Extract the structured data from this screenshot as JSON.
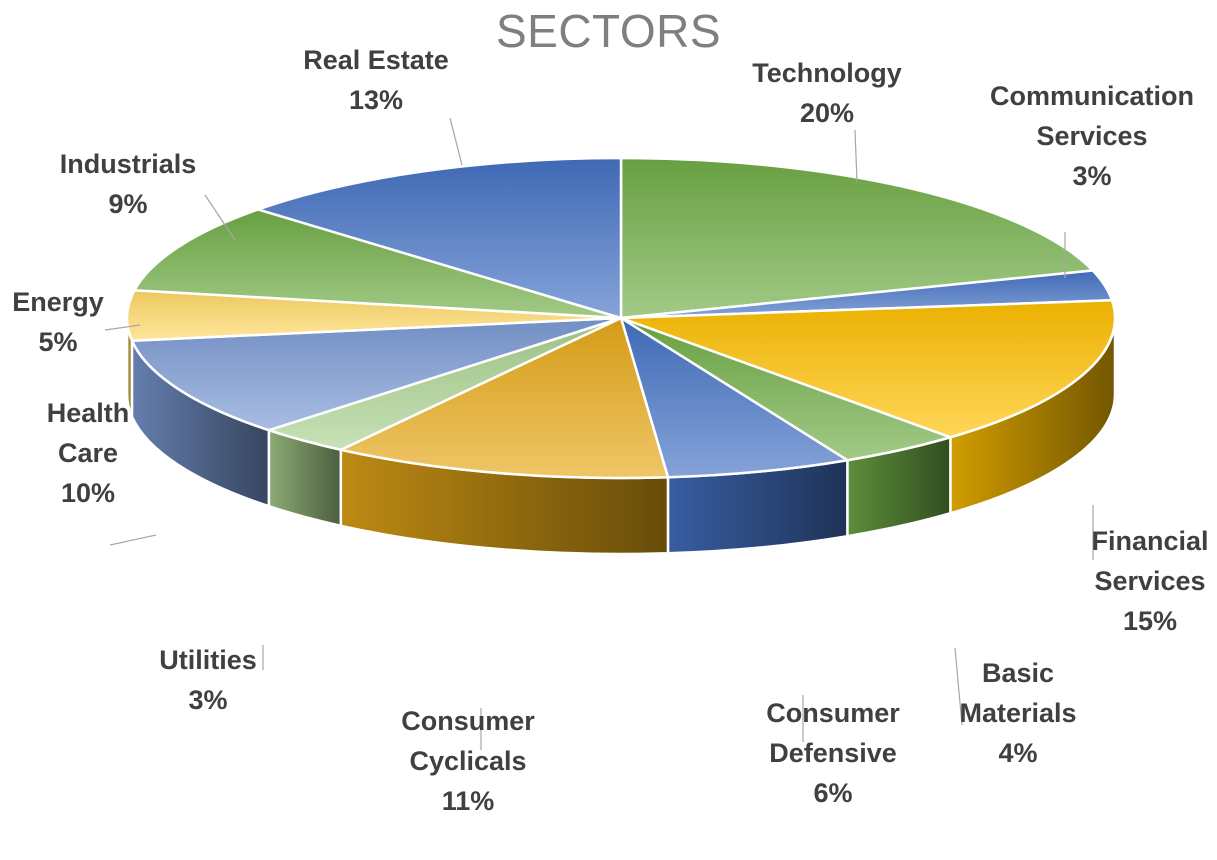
{
  "chart_data": {
    "type": "pie",
    "title": "SECTORS",
    "labels_show_percent": true,
    "slices": [
      {
        "name": "Technology",
        "label_lines": [
          "Technology"
        ],
        "percent_label": "20%",
        "value": 20,
        "color": "#70ad47"
      },
      {
        "name": "Communication Services",
        "label_lines": [
          "Communication",
          "Services"
        ],
        "percent_label": "3%",
        "value": 3,
        "color": "#4472c4"
      },
      {
        "name": "Financial Services",
        "label_lines": [
          "Financial",
          "Services"
        ],
        "percent_label": "15%",
        "value": 15,
        "color": "#ffc000"
      },
      {
        "name": "Basic Materials",
        "label_lines": [
          "Basic",
          "Materials"
        ],
        "percent_label": "4%",
        "value": 4,
        "color": "#70ad47"
      },
      {
        "name": "Consumer Defensive",
        "label_lines": [
          "Consumer",
          "Defensive"
        ],
        "percent_label": "6%",
        "value": 6,
        "color": "#4472c4"
      },
      {
        "name": "Consumer Cyclicals",
        "label_lines": [
          "Consumer",
          "Cyclicals"
        ],
        "percent_label": "11%",
        "value": 11,
        "color": "#e6a817"
      },
      {
        "name": "Utilities",
        "label_lines": [
          "Utilities"
        ],
        "percent_label": "3%",
        "value": 3,
        "color": "#a9d18e"
      },
      {
        "name": "Health Care",
        "label_lines": [
          "Health",
          "Care"
        ],
        "percent_label": "10%",
        "value": 10,
        "color": "#7b9ad4"
      },
      {
        "name": "Energy",
        "label_lines": [
          "Energy"
        ],
        "percent_label": "5%",
        "value": 5,
        "color": "#ffd966"
      },
      {
        "name": "Industrials",
        "label_lines": [
          "Industrials"
        ],
        "percent_label": "9%",
        "value": 9,
        "color": "#70ad47"
      },
      {
        "name": "Real Estate",
        "label_lines": [
          "Real Estate"
        ],
        "percent_label": "13%",
        "value": 13,
        "color": "#4472c4"
      }
    ]
  }
}
